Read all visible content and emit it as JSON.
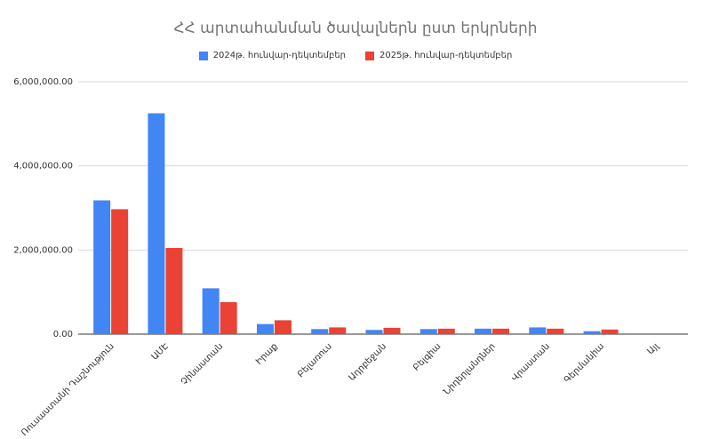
{
  "chart_data": {
    "type": "bar",
    "title": "ՀՀ արտահանման ծավալներն ըստ երկրների",
    "xlabel": "",
    "ylabel": "",
    "ylim": [
      0,
      6000000
    ],
    "yticks": [
      0,
      2000000,
      4000000,
      6000000
    ],
    "ytick_labels": [
      "0.00",
      "2,000,000.00",
      "4,000,000.00",
      "6,000,000.00"
    ],
    "grid": true,
    "legend_position": "top",
    "categories": [
      "Ռուսաստանի Դաշնություն",
      "ԱՄԷ",
      "Չինաստան",
      "Իրաք",
      "Բելառուս",
      "Ադրբեջան",
      "Բելգիա",
      "Նիդերլանդներ",
      "Վրաստան",
      "Գերմանիա",
      "Այլ"
    ],
    "series": [
      {
        "name": "2024թ. հունվար-դեկտեմբեր",
        "color": "#4285f4",
        "values": [
          3180000,
          5250000,
          1090000,
          240000,
          120000,
          100000,
          120000,
          130000,
          160000,
          70000,
          0
        ]
      },
      {
        "name": "2025թ. հունվար-դեկտեմբեր",
        "color": "#ea4335",
        "values": [
          2970000,
          2050000,
          760000,
          330000,
          160000,
          150000,
          130000,
          130000,
          130000,
          110000,
          0
        ]
      }
    ]
  }
}
